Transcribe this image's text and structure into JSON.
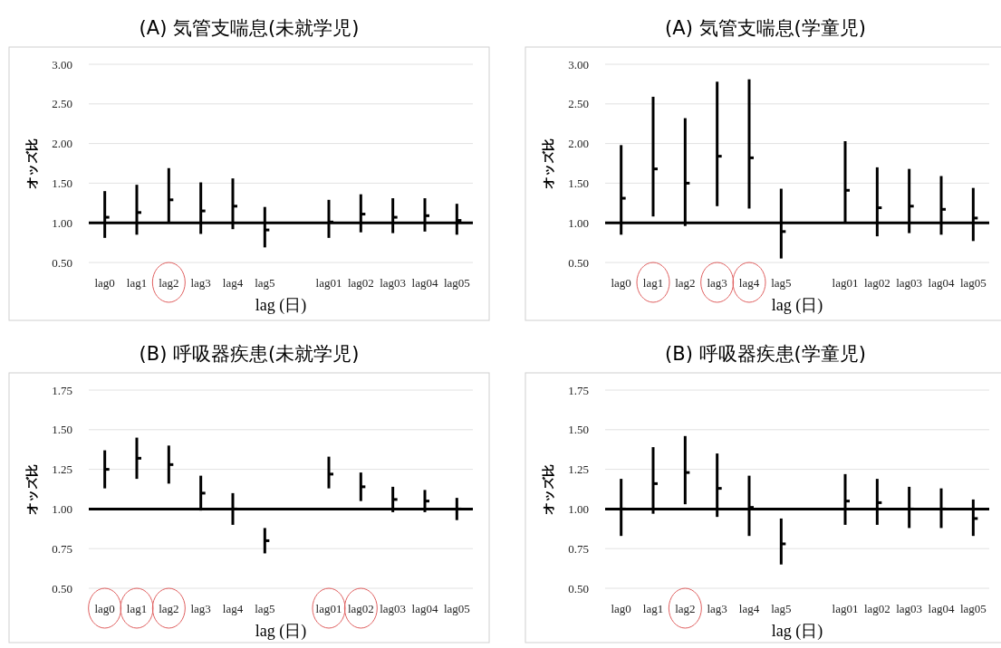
{
  "chart_data": [
    {
      "type": "scatter",
      "title": "(A) 気管支喘息(未就学児)",
      "xlabel": "lag (日)",
      "ylabel": "オッズ比",
      "categories": [
        "lag0",
        "lag1",
        "lag2",
        "lag3",
        "lag4",
        "lag5",
        null,
        "lag01",
        "lag02",
        "lag03",
        "lag04",
        "lag05"
      ],
      "ylim": [
        0.5,
        3.0
      ],
      "yticks": [
        {
          "value": 0.5,
          "label": "0.50"
        },
        {
          "value": 1,
          "label": "1.00"
        },
        {
          "value": 1.5,
          "label": "1.50"
        },
        {
          "value": 2,
          "label": "2.00"
        },
        {
          "value": 2.5,
          "label": "2.50"
        },
        {
          "value": 3,
          "label": "3.00"
        }
      ],
      "grid": "y",
      "ref_lines": [
        {
          "axis": "y",
          "value": 1,
          "color": "#000000"
        }
      ],
      "series": [
        {
          "color": "#000000",
          "values": [
            1.07,
            1.13,
            1.29,
            1.15,
            1.21,
            0.91,
            null,
            1.01,
            1.11,
            1.07,
            1.09,
            1.03
          ],
          "errors": [
            [
              0.81,
              1.4
            ],
            [
              0.85,
              1.48
            ],
            [
              1.0,
              1.69
            ],
            [
              0.86,
              1.51
            ],
            [
              0.92,
              1.56
            ],
            [
              0.69,
              1.2
            ],
            null,
            [
              0.81,
              1.29
            ],
            [
              0.88,
              1.36
            ],
            [
              0.87,
              1.31
            ],
            [
              0.89,
              1.31
            ],
            [
              0.85,
              1.24
            ]
          ]
        }
      ]
    },
    {
      "type": "scatter",
      "title": "(A) 気管支喘息(学童児)",
      "xlabel": "lag (日)",
      "ylabel": "オッズ比",
      "categories": [
        "lag0",
        "lag1",
        "lag2",
        "lag3",
        "lag4",
        "lag5",
        null,
        "lag01",
        "lag02",
        "lag03",
        "lag04",
        "lag05"
      ],
      "ylim": [
        0.5,
        3.0
      ],
      "yticks": [
        {
          "value": 0.5,
          "label": "0.50"
        },
        {
          "value": 1,
          "label": "1.00"
        },
        {
          "value": 1.5,
          "label": "1.50"
        },
        {
          "value": 2,
          "label": "2.00"
        },
        {
          "value": 2.5,
          "label": "2.50"
        },
        {
          "value": 3,
          "label": "3.00"
        }
      ],
      "grid": "y",
      "ref_lines": [
        {
          "axis": "y",
          "value": 1,
          "color": "#000000"
        }
      ],
      "series": [
        {
          "color": "#000000",
          "values": [
            1.31,
            1.68,
            1.5,
            1.84,
            1.82,
            0.89,
            null,
            1.41,
            1.19,
            1.21,
            1.17,
            1.06
          ],
          "errors": [
            [
              0.85,
              1.98
            ],
            [
              1.08,
              2.59
            ],
            [
              0.96,
              2.32
            ],
            [
              1.21,
              2.78
            ],
            [
              1.18,
              2.81
            ],
            [
              0.55,
              1.43
            ],
            null,
            [
              1.0,
              2.03
            ],
            [
              0.83,
              1.7
            ],
            [
              0.87,
              1.68
            ],
            [
              0.85,
              1.59
            ],
            [
              0.77,
              1.44
            ]
          ]
        }
      ]
    },
    {
      "type": "scatter",
      "title": "(B) 呼吸器疾患(未就学児)",
      "xlabel": "lag (日)",
      "ylabel": "オッズ比",
      "categories": [
        "lag0",
        "lag1",
        "lag2",
        "lag3",
        "lag4",
        "lag5",
        null,
        "lag01",
        "lag02",
        "lag03",
        "lag04",
        "lag05"
      ],
      "ylim": [
        0.5,
        1.75
      ],
      "yticks": [
        {
          "value": 0.5,
          "label": "0.50"
        },
        0.75,
        {
          "value": 1,
          "label": "1.00"
        },
        1.25,
        {
          "value": 1.5,
          "label": "1.50"
        },
        1.75
      ],
      "grid": "y",
      "ref_lines": [
        {
          "axis": "y",
          "value": 1,
          "color": "#000000"
        }
      ],
      "series": [
        {
          "color": "#000000",
          "values": [
            1.25,
            1.32,
            1.28,
            1.1,
            1.0,
            0.8,
            null,
            1.22,
            1.14,
            1.06,
            1.05,
            1.0
          ],
          "errors": [
            [
              1.13,
              1.37
            ],
            [
              1.19,
              1.45
            ],
            [
              1.16,
              1.4
            ],
            [
              0.99,
              1.21
            ],
            [
              0.9,
              1.1
            ],
            [
              0.72,
              0.88
            ],
            null,
            [
              1.13,
              1.33
            ],
            [
              1.05,
              1.23
            ],
            [
              0.98,
              1.14
            ],
            [
              0.98,
              1.12
            ],
            [
              0.93,
              1.07
            ]
          ]
        }
      ]
    },
    {
      "type": "scatter",
      "title": "(B) 呼吸器疾患(学童児)",
      "xlabel": "lag (日)",
      "ylabel": "オッズ比",
      "categories": [
        "lag0",
        "lag1",
        "lag2",
        "lag3",
        "lag4",
        "lag5",
        null,
        "lag01",
        "lag02",
        "lag03",
        "lag04",
        "lag05"
      ],
      "ylim": [
        0.5,
        1.75
      ],
      "yticks": [
        {
          "value": 0.5,
          "label": "0.50"
        },
        0.75,
        {
          "value": 1,
          "label": "1.00"
        },
        1.25,
        {
          "value": 1.5,
          "label": "1.50"
        },
        1.75
      ],
      "grid": "y",
      "ref_lines": [
        {
          "axis": "y",
          "value": 1,
          "color": "#000000"
        }
      ],
      "series": [
        {
          "color": "#000000",
          "values": [
            1.0,
            1.16,
            1.23,
            1.13,
            1.01,
            0.78,
            null,
            1.05,
            1.04,
            1.0,
            1.0,
            0.94
          ],
          "errors": [
            [
              0.83,
              1.19
            ],
            [
              0.97,
              1.39
            ],
            [
              1.03,
              1.46
            ],
            [
              0.95,
              1.35
            ],
            [
              0.83,
              1.21
            ],
            [
              0.65,
              0.94
            ],
            null,
            [
              0.9,
              1.22
            ],
            [
              0.9,
              1.19
            ],
            [
              0.88,
              1.14
            ],
            [
              0.88,
              1.13
            ],
            [
              0.83,
              1.06
            ]
          ]
        }
      ]
    }
  ]
}
